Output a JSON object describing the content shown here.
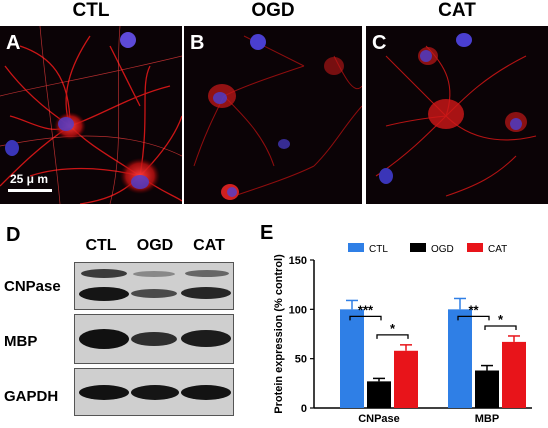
{
  "columns": [
    "CTL",
    "OGD",
    "CAT"
  ],
  "micrograph_panels": [
    {
      "letter": "A"
    },
    {
      "letter": "B"
    },
    {
      "letter": "C"
    }
  ],
  "scale_bar_label": "25 μ m",
  "panel_d": {
    "letter": "D",
    "lanes": [
      "CTL",
      "OGD",
      "CAT"
    ],
    "rows": [
      "CNPase",
      "MBP",
      "GAPDH"
    ]
  },
  "panel_e": {
    "letter": "E"
  },
  "chart_data": {
    "type": "bar",
    "categories": [
      "CNPase",
      "MBP"
    ],
    "series": [
      {
        "name": "CTL",
        "color": "#2f7fe6",
        "values": [
          100,
          100
        ],
        "errors": [
          9,
          11
        ]
      },
      {
        "name": "OGD",
        "color": "#000000",
        "values": [
          27,
          38
        ],
        "errors": [
          3,
          5
        ]
      },
      {
        "name": "CAT",
        "color": "#e8141a",
        "values": [
          58,
          67
        ],
        "errors": [
          6,
          6
        ]
      }
    ],
    "ylabel": "Protein expression (% control)",
    "xlabel": "",
    "ylim": [
      0,
      150
    ],
    "yticks": [
      0,
      50,
      100,
      150
    ],
    "legend_position": "top",
    "significance": [
      {
        "category": "CNPase",
        "pair": [
          "CTL",
          "OGD"
        ],
        "label": "***"
      },
      {
        "category": "CNPase",
        "pair": [
          "OGD",
          "CAT"
        ],
        "label": "*"
      },
      {
        "category": "MBP",
        "pair": [
          "CTL",
          "OGD"
        ],
        "label": "**"
      },
      {
        "category": "MBP",
        "pair": [
          "OGD",
          "CAT"
        ],
        "label": "*"
      }
    ]
  }
}
